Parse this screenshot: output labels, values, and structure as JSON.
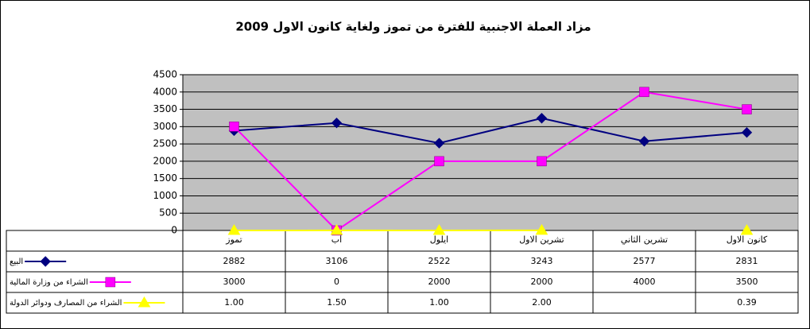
{
  "chart_data": {
    "type": "line",
    "title": "مزاد العملة الاجنبية للفترة من تموز ولغاية كانون الاول 2009",
    "categories": [
      "تموز",
      "آب",
      "ايلول",
      "تشرين الاول",
      "تشرين الثاني",
      "كانون الاول"
    ],
    "series": [
      {
        "name": "البيع",
        "color": "#000080",
        "marker": "diamond",
        "values": [
          2882,
          3106,
          2522,
          3243,
          2577,
          2831
        ]
      },
      {
        "name": "الشراء من وزارة المالية",
        "color": "#ff00ff",
        "marker": "square",
        "values": [
          3000,
          0,
          2000,
          2000,
          4000,
          3500
        ]
      },
      {
        "name": "الشراء من المصارف ودوائر الدولة",
        "color": "#ffff00",
        "marker": "triangle",
        "values": [
          1.0,
          1.5,
          1.0,
          2.0,
          null,
          0.39
        ],
        "value_labels": [
          "1.00",
          "1.50",
          "1.00",
          "2.00",
          null,
          "0.39"
        ]
      }
    ],
    "ylim": [
      0,
      4500
    ],
    "yticks": [
      0,
      500,
      1000,
      1500,
      2000,
      2500,
      3000,
      3500,
      4000,
      4500
    ],
    "grid": true,
    "plot_background": "#c0c0c0",
    "data_table": true
  }
}
